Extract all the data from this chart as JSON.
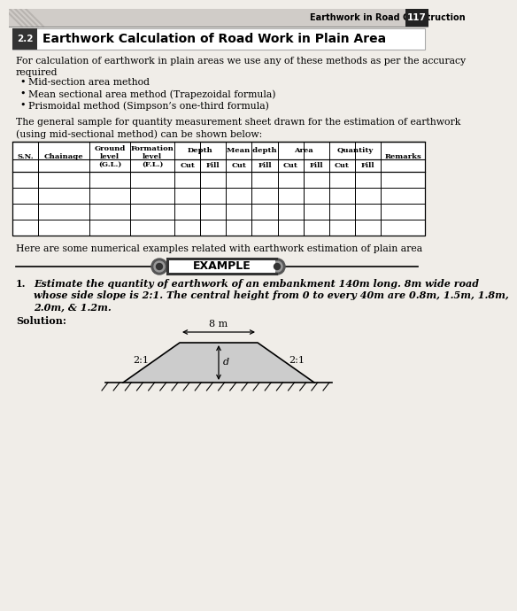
{
  "page_bg": "#f0ede8",
  "header_bg": "#d0ccc8",
  "header_text": "Earthwork in Road Construction",
  "header_page": "117",
  "section_num": "2.2",
  "section_title": "Earthwork Calculation of Road Work in Plain Area",
  "intro_line1": "For calculation of earthwork in plain areas we use any of these methods as per the accuracy",
  "intro_line2": "required",
  "bullets": [
    "Mid-section area method",
    "Mean sectional area method (Trapezoidal formula)",
    "Prismoidal method (Simpson’s one-third formula)"
  ],
  "para_line1": "The general sample for quantity measurement sheet drawn for the estimation of earthwork",
  "para_line2": "(using mid-sectional method) can be shown below:",
  "note_text": "Here are some numerical examples related with earthwork estimation of plain area",
  "example_label": "EXAMPLE",
  "problem_text_1": "Estimate the quantity of earthwork of an embankment 140m long. 8m wide road",
  "problem_text_2": "whose side slope is 2:1. The central height from 0 to every 40m are 0.8m, 1.5m, 1.8m,",
  "problem_text_3": "2.0m, & 1.2m.",
  "solution_label": "Solution:",
  "diagram_road_width": "8 m",
  "diagram_slope_left": "2:1",
  "diagram_slope_right": "2:1",
  "diagram_depth_label": "d"
}
